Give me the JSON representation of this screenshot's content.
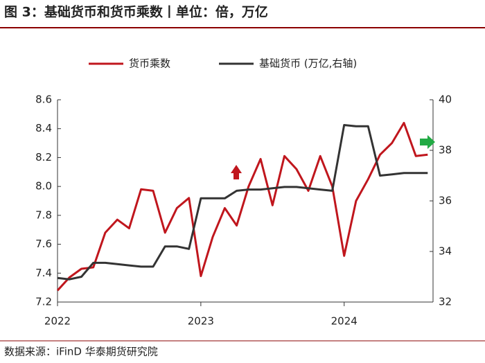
{
  "chart_data": {
    "type": "line",
    "title": "图 3：基础货币和货币乘数丨单位：倍，万亿",
    "source": "数据来源：iFinD  华泰期货研究院",
    "x": [
      2022,
      2022.083,
      2022.167,
      2022.25,
      2022.333,
      2022.417,
      2022.5,
      2022.583,
      2022.667,
      2022.75,
      2022.833,
      2022.917,
      2023,
      2023.083,
      2023.167,
      2023.25,
      2023.333,
      2023.417,
      2023.5,
      2023.583,
      2023.667,
      2023.75,
      2023.833,
      2023.917,
      2024,
      2024.083,
      2024.167,
      2024.25,
      2024.333,
      2024.417,
      2024.5,
      2024.583
    ],
    "series": [
      {
        "name": "货币乘数",
        "color": "#c0161d",
        "values": [
          7.28,
          7.37,
          7.43,
          7.44,
          7.68,
          7.77,
          7.71,
          7.98,
          7.97,
          7.68,
          7.85,
          7.92,
          7.38,
          7.65,
          7.85,
          7.73,
          8.0,
          8.19,
          7.87,
          8.21,
          8.12,
          7.97,
          8.21,
          8.0,
          7.52,
          7.9,
          8.05,
          8.22,
          8.3,
          8.44,
          8.21,
          8.22
        ]
      },
      {
        "name": "基础货币 (万亿,右轴)",
        "color": "#333333",
        "axis": "y2",
        "values": [
          32.95,
          32.9,
          33.0,
          33.55,
          33.55,
          33.5,
          33.45,
          33.4,
          33.4,
          34.2,
          34.2,
          34.1,
          36.1,
          36.1,
          36.1,
          36.4,
          36.45,
          36.45,
          36.5,
          36.55,
          36.55,
          36.5,
          36.45,
          36.4,
          39.0,
          38.95,
          38.95,
          37.0,
          37.05,
          37.1,
          37.1,
          37.1
        ]
      }
    ],
    "xlim": [
      2022,
      2024.62
    ],
    "xticks": [
      2022,
      2023,
      2024
    ],
    "ylim": [
      7.2,
      8.6
    ],
    "yticks": [
      7.2,
      7.4,
      7.6,
      7.8,
      {
        "value": 8,
        "label": "8.0"
      },
      8.2,
      8.4,
      8.6
    ],
    "y2lim": [
      32,
      40
    ],
    "y2ticks": [
      32,
      34,
      36,
      38,
      40
    ],
    "grid": false,
    "legend": "top"
  }
}
